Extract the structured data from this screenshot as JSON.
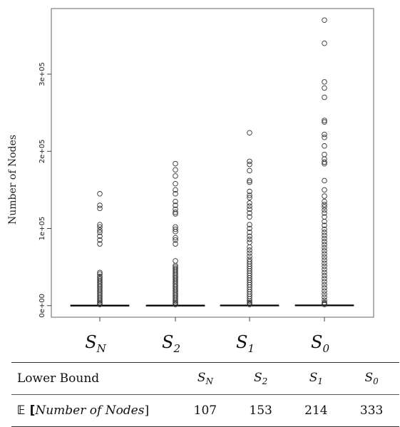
{
  "chart_data": {
    "type": "box",
    "ylabel": "Number of Nodes",
    "yticks": [
      {
        "value": 0,
        "label": "0e+00"
      },
      {
        "value": 100000,
        "label": "1e+05"
      },
      {
        "value": 200000,
        "label": "2e+05"
      },
      {
        "value": 300000,
        "label": "3e+05"
      }
    ],
    "ylim": [
      -15000,
      385000
    ],
    "grid": false,
    "categories": [
      {
        "base": "S",
        "sub": "N"
      },
      {
        "base": "S",
        "sub": "2"
      },
      {
        "base": "S",
        "sub": "1"
      },
      {
        "base": "S",
        "sub": "0"
      }
    ],
    "boxes": [
      {
        "median": 107,
        "q1": 0,
        "q3": 300,
        "whisker_low": 0,
        "whisker_high": 700,
        "outliers": [
          145000,
          130000,
          126000,
          105000,
          102000,
          98000,
          95000,
          90000,
          85000,
          80000,
          43000,
          41000,
          38000,
          36000,
          34000,
          32000,
          30000,
          28000,
          26000,
          24000,
          22000,
          20000,
          18000,
          16000,
          14000,
          12000,
          10000,
          8000,
          6000,
          4000,
          2500,
          1500
        ]
      },
      {
        "median": 153,
        "q1": 0,
        "q3": 400,
        "whisker_low": 0,
        "whisker_high": 900,
        "outliers": [
          184000,
          176000,
          168000,
          158000,
          150000,
          145000,
          135000,
          130000,
          125000,
          121000,
          119000,
          102000,
          99000,
          96000,
          88000,
          85000,
          80000,
          58000,
          52000,
          50000,
          48000,
          46000,
          44000,
          42000,
          40000,
          38000,
          36000,
          34000,
          32000,
          30000,
          28000,
          26000,
          24000,
          22000,
          20000,
          18000,
          16000,
          14000,
          12000,
          10000,
          8000,
          6000,
          4000,
          2500,
          1500
        ]
      },
      {
        "median": 214,
        "q1": 0,
        "q3": 500,
        "whisker_low": 0,
        "whisker_high": 1200,
        "outliers": [
          224000,
          187000,
          183000,
          175000,
          162000,
          160000,
          148000,
          143000,
          140000,
          133000,
          129000,
          125000,
          120000,
          115000,
          105000,
          100000,
          95000,
          90000,
          86000,
          82000,
          76000,
          72000,
          68000,
          64000,
          60000,
          57000,
          54000,
          51000,
          48000,
          45000,
          42000,
          39000,
          36000,
          33000,
          30000,
          27000,
          24000,
          21000,
          18000,
          15000,
          12000,
          9000,
          6000,
          4000,
          2500,
          1500
        ]
      },
      {
        "median": 333,
        "q1": 0,
        "q3": 700,
        "whisker_low": 0,
        "whisker_high": 1600,
        "outliers": [
          370000,
          340000,
          290000,
          282000,
          270000,
          240000,
          238000,
          222000,
          218000,
          207000,
          196000,
          190000,
          186000,
          184000,
          162000,
          150000,
          142000,
          135000,
          131000,
          128000,
          124000,
          120000,
          115000,
          109000,
          104000,
          99000,
          95000,
          91000,
          87000,
          83000,
          79000,
          75000,
          71000,
          67000,
          63000,
          59000,
          55000,
          51000,
          47000,
          43000,
          39000,
          35000,
          31000,
          27000,
          23000,
          19000,
          15000,
          11000,
          7000,
          4000,
          2500,
          1500
        ]
      }
    ]
  },
  "table": {
    "row1_label": "Lower Bound",
    "row2_label_prefix": "𝔼 [",
    "row2_label_italic": "Number of Nodes",
    "row2_label_suffix": "]",
    "columns": [
      {
        "base": "S",
        "sub": "N",
        "value": "107"
      },
      {
        "base": "S",
        "sub": "2",
        "value": "153"
      },
      {
        "base": "S",
        "sub": "1",
        "value": "214"
      },
      {
        "base": "S",
        "sub": "0",
        "value": "333"
      }
    ]
  }
}
